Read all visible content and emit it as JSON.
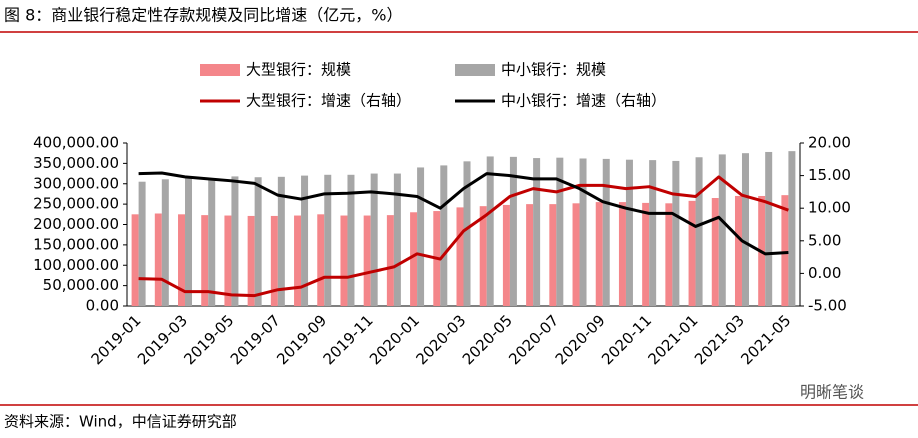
{
  "header": {
    "title": "图 8：商业银行稳定性存款规模及同比增速（亿元，%）"
  },
  "chart_data": {
    "type": "combo",
    "categories": [
      "2019-01",
      null,
      "2019-03",
      null,
      "2019-05",
      null,
      "2019-07",
      null,
      "2019-09",
      null,
      "2019-11",
      null,
      "2020-01",
      null,
      "2020-03",
      null,
      "2020-05",
      null,
      "2020-07",
      null,
      "2020-09",
      null,
      "2020-11",
      null,
      "2021-01",
      null,
      "2021-03",
      null,
      "2021-05"
    ],
    "series": [
      {
        "name": "大型银行：规模",
        "type": "bar",
        "color": "#f4868a",
        "values": [
          225000,
          227000,
          225000,
          223000,
          222000,
          221000,
          221000,
          222000,
          225000,
          222000,
          222000,
          223000,
          230000,
          233000,
          242000,
          245000,
          248000,
          250000,
          250000,
          252000,
          255000,
          255000,
          253000,
          252000,
          258000,
          265000,
          270000,
          270000,
          272000
        ]
      },
      {
        "name": "中小银行：规模",
        "type": "bar",
        "color": "#a6a6a6",
        "values": [
          305000,
          311000,
          315000,
          313000,
          318000,
          316000,
          317000,
          320000,
          322000,
          322000,
          325000,
          325000,
          340000,
          345000,
          355000,
          367000,
          366000,
          363000,
          364000,
          362000,
          361000,
          359000,
          358000,
          356000,
          365000,
          372000,
          375000,
          378000,
          380000
        ]
      },
      {
        "name": "大型银行：增速（右轴）",
        "type": "line",
        "axis": "y2",
        "color": "#c00000",
        "values": [
          -0.8,
          -0.9,
          -2.8,
          -2.8,
          -3.3,
          -3.4,
          -2.5,
          -2.1,
          -0.6,
          -0.6,
          0.2,
          1.0,
          3.0,
          2.2,
          6.5,
          9.0,
          11.8,
          13.0,
          12.5,
          13.5,
          13.5,
          13.0,
          13.3,
          12.2,
          11.8,
          14.8,
          12.0,
          11.0,
          9.7
        ]
      },
      {
        "name": "中小银行：增速（右轴）",
        "type": "line",
        "axis": "y2",
        "color": "#000000",
        "values": [
          15.3,
          15.4,
          14.8,
          14.5,
          14.2,
          13.8,
          12.0,
          11.4,
          12.2,
          12.3,
          12.5,
          12.2,
          11.8,
          10.0,
          13.0,
          15.3,
          15.0,
          14.5,
          14.5,
          13.0,
          11.0,
          10.0,
          9.2,
          9.2,
          7.2,
          8.6,
          5.0,
          3.0,
          3.2
        ]
      }
    ],
    "ylim": [
      0,
      400000
    ],
    "yticks": [
      {
        "value": 0,
        "label": "0.00"
      },
      {
        "value": 50000,
        "label": "50,000.00"
      },
      {
        "value": 100000,
        "label": "100,000.00"
      },
      {
        "value": 150000,
        "label": "150,000.00"
      },
      {
        "value": 200000,
        "label": "200,000.00"
      },
      {
        "value": 250000,
        "label": "250,000.00"
      },
      {
        "value": 300000,
        "label": "300,000.00"
      },
      {
        "value": 350000,
        "label": "350,000.00"
      },
      {
        "value": 400000,
        "label": "400,000.00"
      }
    ],
    "y2lim": [
      -5,
      20
    ],
    "y2ticks": [
      {
        "value": -5,
        "label": "-5.00"
      },
      {
        "value": 0,
        "label": "0.00"
      },
      {
        "value": 5,
        "label": "5.00"
      },
      {
        "value": 10,
        "label": "10.00"
      },
      {
        "value": 15,
        "label": "15.00"
      },
      {
        "value": 20,
        "label": "20.00"
      }
    ]
  },
  "footer": {
    "source": "资料来源：Wind，中信证券研究部",
    "watermark": "明晰笔谈"
  }
}
